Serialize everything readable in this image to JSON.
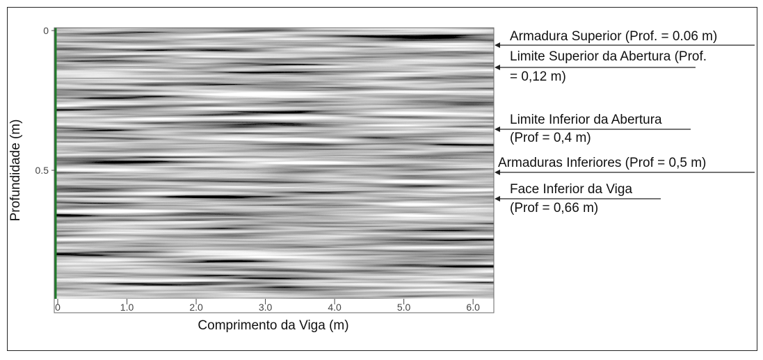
{
  "chart_data": {
    "type": "radargram",
    "x_label": "Comprimento da Viga (m)",
    "y_label": "Profundidade (m)",
    "xlim": [
      0,
      6.3
    ],
    "xticks": [
      0,
      {
        "value": 1,
        "label": "1.0"
      },
      {
        "value": 2,
        "label": "2.0"
      },
      {
        "value": 3,
        "label": "3.0"
      },
      {
        "value": 4,
        "label": "4.0"
      },
      {
        "value": 5,
        "label": "5.0"
      },
      {
        "value": 6,
        "label": "6.0"
      }
    ],
    "ylim": [
      0,
      0.96
    ],
    "yticks": [
      0,
      0.5
    ],
    "annotations": [
      {
        "lines": [
          "Armadura Superior (Prof. = 0.06 m)"
        ]
      },
      {
        "lines": [
          "Limite Superior da Abertura (Prof.",
          "= 0,12 m)"
        ]
      },
      {
        "lines": [
          "Limite Inferior da Abertura",
          "(Prof = 0,4 m)"
        ]
      },
      {
        "lines": [
          "Armaduras Inferiores (Prof = 0,5 m)"
        ]
      },
      {
        "lines": [
          "Face Inferior da Viga",
          "(Prof = 0,66 m)"
        ]
      }
    ]
  }
}
